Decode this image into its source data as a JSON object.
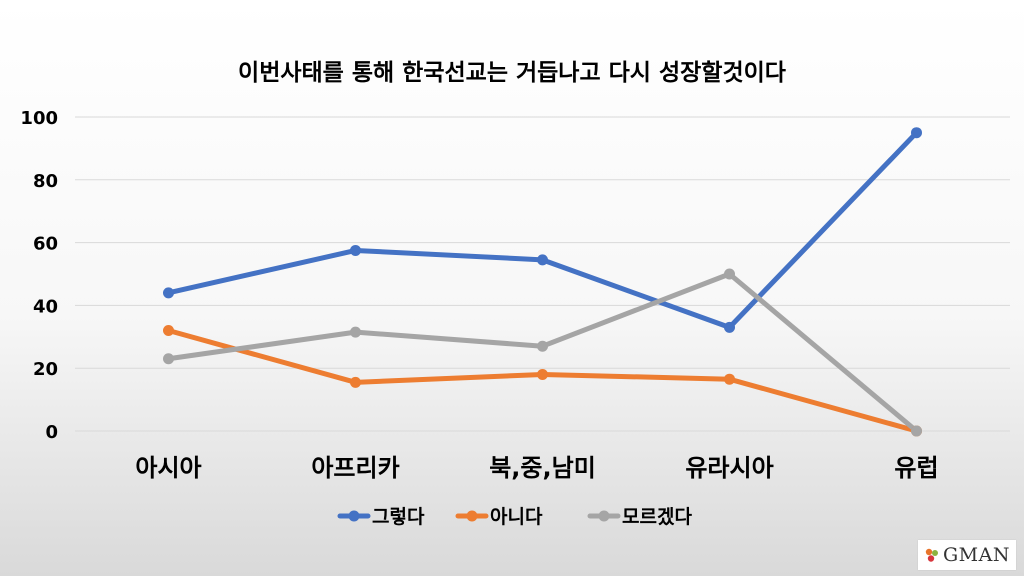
{
  "chart_data": {
    "type": "line",
    "title": "이번사태를 통해 한국선교는 거듭나고 다시 성장할것이다",
    "categories": [
      "아시아",
      "아프리카",
      "북,중,남미",
      "유라시아",
      "유럽"
    ],
    "series": [
      {
        "name": "그렇다",
        "color": "#4472C4",
        "values": [
          44,
          57.5,
          54.5,
          33,
          95
        ]
      },
      {
        "name": "아니다",
        "color": "#ED7D31",
        "values": [
          32,
          15.5,
          18,
          16.5,
          0
        ]
      },
      {
        "name": "모르겠다",
        "color": "#A5A5A5",
        "values": [
          23,
          31.5,
          27,
          50,
          0
        ]
      }
    ],
    "ylim": [
      0,
      100
    ],
    "yticks": [
      0,
      20,
      40,
      60,
      80,
      100
    ],
    "grid": true,
    "legend": "bottom"
  },
  "logo": {
    "text": "GMAN"
  },
  "colors": {
    "grid": "#D9D9D9",
    "text": "#000000"
  }
}
